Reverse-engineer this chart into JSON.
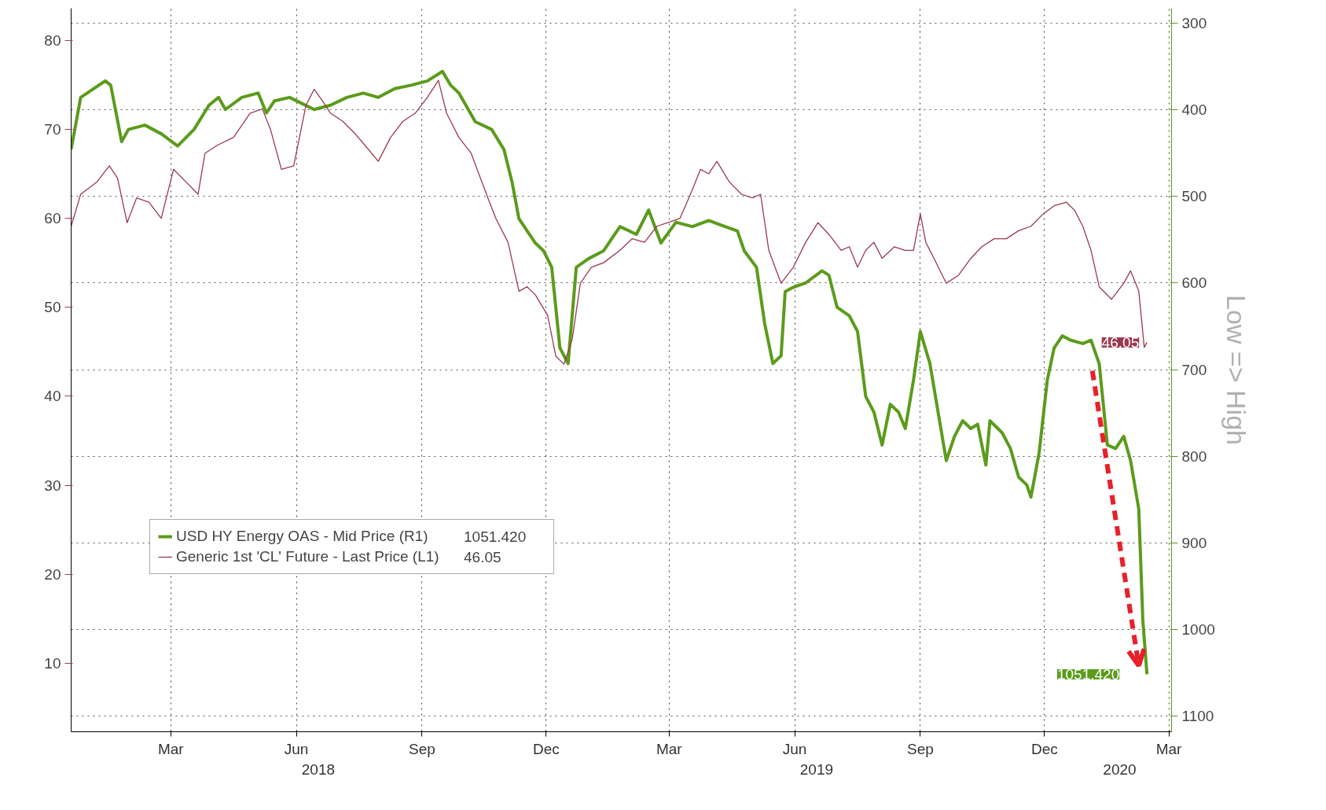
{
  "chart_data": {
    "type": "line",
    "xlim": [
      "2018-01-01",
      "2020-03-17"
    ],
    "xticks": [
      {
        "value": "2018-03-15",
        "label": "Mar"
      },
      {
        "value": "2018-06-15",
        "label": "Jun"
      },
      {
        "value": "2018-09-15",
        "label": "Sep"
      },
      {
        "value": "2018-12-15",
        "label": "Dec"
      },
      {
        "value": "2019-03-15",
        "label": "Mar"
      },
      {
        "value": "2019-06-15",
        "label": "Jun"
      },
      {
        "value": "2019-09-15",
        "label": "Sep"
      },
      {
        "value": "2019-12-15",
        "label": "Dec"
      },
      {
        "value": "2020-03-15",
        "label": "Mar"
      }
    ],
    "x2lim": [
      "2018-01-01",
      "2020-03-17"
    ],
    "x2ticks": [
      {
        "value": "2018-07-01",
        "label": "2018"
      },
      {
        "value": "2019-07-01",
        "label": "2019"
      },
      {
        "value": "2020-02-08",
        "label": "2020"
      }
    ],
    "ylim": [
      2.3,
      83.6
    ],
    "yticks": [
      10,
      20,
      30,
      40,
      50,
      60,
      70,
      80
    ],
    "y2lim": [
      1117.7,
      283.2
    ],
    "y2ticks": [
      300,
      400,
      500,
      600,
      700,
      800,
      900,
      1000,
      1100
    ],
    "y2label": "Low => High",
    "grid": true,
    "legend": "bottom left",
    "series": [
      {
        "name": "USD HY Energy OAS - Mid Price (R1)",
        "color": "#5b9b1b",
        "axis": "y2",
        "x": [
          "2018-01-01",
          "2018-01-08",
          "2018-01-26",
          "2018-01-30",
          "2018-02-07",
          "2018-02-12",
          "2018-02-24",
          "2018-03-08",
          "2018-03-20",
          "2018-04-01",
          "2018-04-12",
          "2018-04-19",
          "2018-04-24",
          "2018-05-06",
          "2018-05-18",
          "2018-05-24",
          "2018-05-30",
          "2018-06-10",
          "2018-06-28",
          "2018-07-10",
          "2018-07-22",
          "2018-08-03",
          "2018-08-14",
          "2018-08-26",
          "2018-09-07",
          "2018-09-19",
          "2018-09-30",
          "2018-10-06",
          "2018-10-12",
          "2018-10-24",
          "2018-11-05",
          "2018-11-14",
          "2018-11-20",
          "2018-11-25",
          "2018-12-01",
          "2018-12-07",
          "2018-12-13",
          "2018-12-19",
          "2018-12-25",
          "2018-12-31",
          "2019-01-06",
          "2019-01-15",
          "2019-01-26",
          "2019-02-07",
          "2019-02-19",
          "2019-02-28",
          "2019-03-09",
          "2019-03-20",
          "2019-04-01",
          "2019-04-13",
          "2019-04-25",
          "2019-05-04",
          "2019-05-09",
          "2019-05-18",
          "2019-05-24",
          "2019-05-30",
          "2019-06-05",
          "2019-06-08",
          "2019-06-14",
          "2019-06-23",
          "2019-07-05",
          "2019-07-10",
          "2019-07-16",
          "2019-07-25",
          "2019-07-31",
          "2019-08-06",
          "2019-08-12",
          "2019-08-18",
          "2019-08-24",
          "2019-08-30",
          "2019-09-04",
          "2019-09-10",
          "2019-09-15",
          "2019-09-22",
          "2019-09-28",
          "2019-10-04",
          "2019-10-10",
          "2019-10-16",
          "2019-10-22",
          "2019-10-27",
          "2019-11-02",
          "2019-11-05",
          "2019-11-14",
          "2019-11-20",
          "2019-11-26",
          "2019-12-02",
          "2019-12-05",
          "2019-12-11",
          "2019-12-17",
          "2019-12-22",
          "2019-12-28",
          "2020-01-03",
          "2020-01-12",
          "2020-01-18",
          "2020-01-24",
          "2020-01-30",
          "2020-02-05",
          "2020-02-11",
          "2020-02-16",
          "2020-02-22",
          "2020-02-25",
          "2020-02-28"
        ],
        "values": [
          446,
          386,
          367,
          372,
          437,
          423,
          418,
          428,
          442,
          423,
          395,
          386,
          400,
          386,
          381,
          404,
          390,
          386,
          400,
          395,
          386,
          381,
          386,
          376,
          372,
          367,
          356,
          372,
          381,
          414,
          423,
          446,
          484,
          526,
          540,
          554,
          563,
          582,
          675,
          693,
          582,
          572,
          563,
          535,
          544,
          516,
          554,
          530,
          535,
          528,
          535,
          540,
          563,
          582,
          647,
          693,
          684,
          610,
          605,
          600,
          586,
          591,
          628,
          638,
          656,
          731,
          749,
          787,
          740,
          749,
          768,
          712,
          656,
          693,
          749,
          805,
          777,
          759,
          768,
          763,
          810,
          759,
          773,
          791,
          824,
          833,
          847,
          796,
          712,
          675,
          661,
          666,
          670,
          666,
          693,
          787,
          791,
          777,
          805,
          861,
          990,
          1051.42
        ],
        "value_labels": [
          null,
          null,
          null,
          null,
          null,
          null,
          null,
          null,
          null,
          null,
          null,
          null,
          null,
          null,
          null,
          null,
          null,
          null,
          null,
          null,
          null,
          null,
          null,
          null,
          null,
          null,
          null,
          null,
          null,
          null,
          null,
          null,
          null,
          null,
          null,
          null,
          null,
          null,
          null,
          null,
          null,
          null,
          null,
          null,
          null,
          null,
          null,
          null,
          null,
          null,
          null,
          null,
          null,
          null,
          null,
          null,
          null,
          null,
          null,
          null,
          null,
          null,
          null,
          null,
          null,
          null,
          null,
          null,
          null,
          null,
          null,
          null,
          null,
          null,
          null,
          null,
          null,
          null,
          null,
          null,
          null,
          null,
          null,
          null,
          null,
          null,
          null,
          null,
          null,
          null,
          null,
          null,
          null,
          null,
          null,
          null,
          null,
          null,
          null,
          null,
          null,
          "1051.420"
        ]
      },
      {
        "name": "Generic 1st 'CL' Future - Last Price (L1)",
        "color": "#9b3a4f",
        "x": [
          "2018-01-01",
          "2018-01-08",
          "2018-01-20",
          "2018-01-29",
          "2018-02-04",
          "2018-02-11",
          "2018-02-18",
          "2018-02-27",
          "2018-03-08",
          "2018-03-17",
          "2018-03-26",
          "2018-04-04",
          "2018-04-09",
          "2018-04-18",
          "2018-04-30",
          "2018-05-12",
          "2018-05-21",
          "2018-05-27",
          "2018-06-04",
          "2018-06-13",
          "2018-06-22",
          "2018-06-28",
          "2018-07-04",
          "2018-07-10",
          "2018-07-19",
          "2018-07-28",
          "2018-08-02",
          "2018-08-14",
          "2018-08-23",
          "2018-09-01",
          "2018-09-10",
          "2018-09-19",
          "2018-09-27",
          "2018-10-03",
          "2018-10-12",
          "2018-10-21",
          "2018-10-30",
          "2018-11-08",
          "2018-11-17",
          "2018-11-25",
          "2018-12-01",
          "2018-12-07",
          "2018-12-16",
          "2018-12-22",
          "2018-12-28",
          "2019-01-03",
          "2019-01-09",
          "2019-01-17",
          "2019-01-26",
          "2019-02-07",
          "2019-02-16",
          "2019-02-25",
          "2019-03-06",
          "2019-03-14",
          "2019-03-23",
          "2019-04-01",
          "2019-04-07",
          "2019-04-13",
          "2019-04-19",
          "2019-04-28",
          "2019-05-07",
          "2019-05-15",
          "2019-05-21",
          "2019-05-27",
          "2019-06-05",
          "2019-06-14",
          "2019-06-23",
          "2019-07-02",
          "2019-07-10",
          "2019-07-19",
          "2019-07-25",
          "2019-07-31",
          "2019-08-06",
          "2019-08-12",
          "2019-08-18",
          "2019-08-27",
          "2019-09-04",
          "2019-09-10",
          "2019-09-15",
          "2019-09-19",
          "2019-09-25",
          "2019-10-04",
          "2019-10-13",
          "2019-10-22",
          "2019-10-30",
          "2019-11-08",
          "2019-11-17",
          "2019-11-26",
          "2019-12-05",
          "2019-12-14",
          "2019-12-22",
          "2019-12-31",
          "2020-01-06",
          "2020-01-12",
          "2020-01-18",
          "2020-01-24",
          "2020-02-02",
          "2020-02-11",
          "2020-02-16",
          "2020-02-22",
          "2020-02-26",
          "2020-02-28"
        ],
        "values": [
          59.1,
          62.7,
          64.1,
          65.9,
          64.5,
          59.5,
          62.3,
          61.8,
          60.0,
          65.5,
          64.1,
          62.7,
          67.3,
          68.2,
          69.1,
          71.8,
          72.3,
          70.0,
          65.5,
          65.9,
          72.7,
          74.5,
          73.2,
          71.8,
          70.9,
          69.5,
          68.6,
          66.4,
          69.1,
          70.9,
          71.8,
          73.6,
          75.5,
          71.8,
          69.1,
          67.3,
          63.6,
          60.0,
          57.3,
          51.8,
          52.3,
          51.4,
          49.1,
          44.5,
          43.6,
          46.4,
          52.7,
          54.5,
          55.0,
          56.4,
          57.7,
          57.3,
          59.1,
          59.5,
          60.0,
          63.2,
          65.5,
          65.0,
          66.4,
          64.1,
          62.7,
          62.3,
          62.7,
          56.4,
          52.7,
          54.5,
          57.3,
          59.5,
          58.2,
          56.4,
          56.8,
          54.5,
          56.4,
          57.3,
          55.5,
          56.8,
          56.4,
          56.4,
          60.5,
          57.3,
          55.5,
          52.7,
          53.6,
          55.5,
          56.8,
          57.7,
          57.7,
          58.6,
          59.1,
          60.5,
          61.4,
          61.8,
          60.9,
          59.1,
          56.4,
          52.3,
          50.9,
          52.7,
          54.1,
          51.8,
          45.5,
          46.05
        ],
        "value_labels": [
          null,
          null,
          null,
          null,
          null,
          null,
          null,
          null,
          null,
          null,
          null,
          null,
          null,
          null,
          null,
          null,
          null,
          null,
          null,
          null,
          null,
          null,
          null,
          null,
          null,
          null,
          null,
          null,
          null,
          null,
          null,
          null,
          null,
          null,
          null,
          null,
          null,
          null,
          null,
          null,
          null,
          null,
          null,
          null,
          null,
          null,
          null,
          null,
          null,
          null,
          null,
          null,
          null,
          null,
          null,
          null,
          null,
          null,
          null,
          null,
          null,
          null,
          null,
          null,
          null,
          null,
          null,
          null,
          null,
          null,
          null,
          null,
          null,
          null,
          null,
          null,
          null,
          null,
          null,
          null,
          null,
          null,
          null,
          null,
          null,
          null,
          null,
          null,
          null,
          null,
          null,
          null,
          null,
          null,
          null,
          null,
          null,
          null,
          null,
          null,
          null,
          "46.05"
        ]
      }
    ]
  }
}
